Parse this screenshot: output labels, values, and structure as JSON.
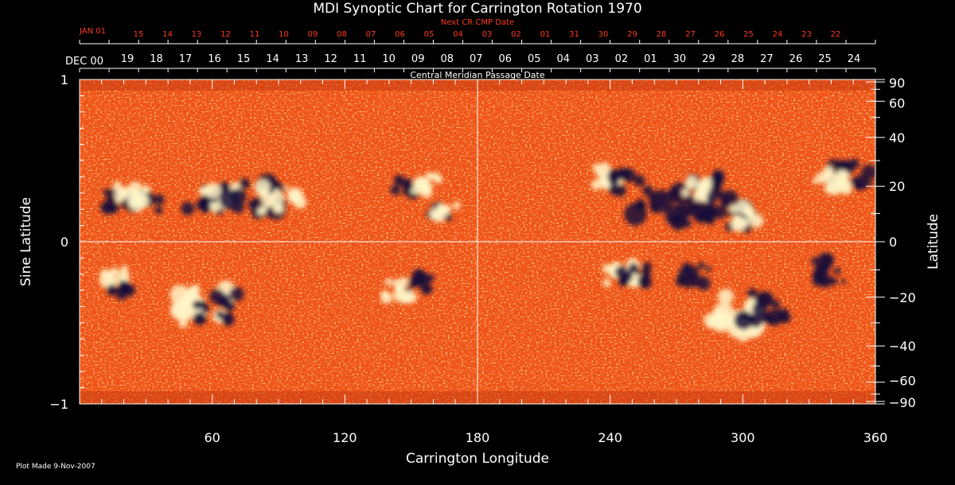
{
  "chart_data": {
    "type": "heatmap",
    "title": "MDI Synoptic Chart for Carrington Rotation 1970",
    "xlabel": "Carrington Longitude",
    "ylabel_left": "Sine Latitude",
    "ylabel_right": "Latitude",
    "top_axis_label": "Central Meridian Passage Date",
    "next_cr_label": "Next CR CMP Date",
    "footer": "Plot Made  9-Nov-2007",
    "xlim": [
      0,
      360
    ],
    "ylim": [
      -1,
      1
    ],
    "x_ticks": [
      {
        "value": 60,
        "label": "60"
      },
      {
        "value": 120,
        "label": "120"
      },
      {
        "value": 180,
        "label": "180"
      },
      {
        "value": 240,
        "label": "240"
      },
      {
        "value": 300,
        "label": "300"
      },
      {
        "value": 360,
        "label": "360"
      }
    ],
    "y_ticks_left": [
      {
        "value": 1,
        "label": "1"
      },
      {
        "value": 0,
        "label": "0"
      },
      {
        "value": -1,
        "label": "−1"
      }
    ],
    "y_ticks_right": [
      {
        "lat": 90,
        "label": "90"
      },
      {
        "lat": 60,
        "label": "60"
      },
      {
        "lat": 40,
        "label": "40"
      },
      {
        "lat": 20,
        "label": "20"
      },
      {
        "lat": 0,
        "label": "0"
      },
      {
        "lat": -20,
        "label": "−20"
      },
      {
        "lat": -40,
        "label": "−40"
      },
      {
        "lat": -60,
        "label": "−60"
      },
      {
        "lat": -90,
        "label": "−90"
      }
    ],
    "cmp_dates": {
      "start_label": "DEC 00",
      "labels": [
        "19",
        "18",
        "17",
        "16",
        "15",
        "14",
        "13",
        "12",
        "11",
        "10",
        "09",
        "08",
        "07",
        "06",
        "05",
        "04",
        "03",
        "02",
        "01",
        "30",
        "29",
        "28",
        "27",
        "26",
        "25",
        "24"
      ]
    },
    "next_cr_dates": {
      "start_label": "JAN 01",
      "labels": [
        "15",
        "14",
        "13",
        "12",
        "11",
        "10",
        "09",
        "08",
        "07",
        "06",
        "05",
        "04",
        "03",
        "02",
        "01",
        "31",
        "30",
        "29",
        "28",
        "27",
        "26",
        "25",
        "24",
        "23",
        "22"
      ]
    },
    "regions": [
      {
        "lon": 18,
        "sinlat": 0.25,
        "polarity": "negative",
        "size": 1.0
      },
      {
        "lon": 30,
        "sinlat": 0.24,
        "polarity": "negative",
        "size": 1.0
      },
      {
        "lon": 24,
        "sinlat": 0.28,
        "polarity": "positive",
        "size": 1.1
      },
      {
        "lon": 58,
        "sinlat": 0.27,
        "polarity": "negative",
        "size": 1.4
      },
      {
        "lon": 64,
        "sinlat": 0.26,
        "polarity": "positive",
        "size": 1.2
      },
      {
        "lon": 80,
        "sinlat": 0.26,
        "polarity": "negative",
        "size": 1.8
      },
      {
        "lon": 91,
        "sinlat": 0.26,
        "polarity": "positive",
        "size": 1.4
      },
      {
        "lon": 148,
        "sinlat": 0.34,
        "polarity": "negative",
        "size": 0.8
      },
      {
        "lon": 156,
        "sinlat": 0.36,
        "polarity": "positive",
        "size": 1.0
      },
      {
        "lon": 162,
        "sinlat": 0.18,
        "polarity": "negative",
        "size": 0.7
      },
      {
        "lon": 166,
        "sinlat": 0.18,
        "polarity": "positive",
        "size": 0.8
      },
      {
        "lon": 237,
        "sinlat": 0.4,
        "polarity": "positive",
        "size": 1.0
      },
      {
        "lon": 247,
        "sinlat": 0.37,
        "polarity": "negative",
        "size": 1.0
      },
      {
        "lon": 265,
        "sinlat": 0.22,
        "polarity": "negative",
        "size": 2.0
      },
      {
        "lon": 283,
        "sinlat": 0.35,
        "polarity": "negative",
        "size": 1.0
      },
      {
        "lon": 278,
        "sinlat": 0.32,
        "polarity": "positive",
        "size": 1.0
      },
      {
        "lon": 292,
        "sinlat": 0.18,
        "polarity": "negative",
        "size": 1.6
      },
      {
        "lon": 303,
        "sinlat": 0.16,
        "polarity": "positive",
        "size": 1.2
      },
      {
        "lon": 350,
        "sinlat": 0.4,
        "polarity": "negative",
        "size": 1.4
      },
      {
        "lon": 340,
        "sinlat": 0.37,
        "polarity": "positive",
        "size": 1.1
      },
      {
        "lon": 15,
        "sinlat": -0.22,
        "polarity": "positive",
        "size": 1.0
      },
      {
        "lon": 20,
        "sinlat": -0.3,
        "polarity": "negative",
        "size": 0.8
      },
      {
        "lon": 55,
        "sinlat": -0.4,
        "polarity": "positive",
        "size": 1.8
      },
      {
        "lon": 62,
        "sinlat": -0.4,
        "polarity": "negative",
        "size": 1.4
      },
      {
        "lon": 155,
        "sinlat": -0.25,
        "polarity": "negative",
        "size": 1.0
      },
      {
        "lon": 145,
        "sinlat": -0.3,
        "polarity": "positive",
        "size": 1.0
      },
      {
        "lon": 245,
        "sinlat": -0.2,
        "polarity": "positive",
        "size": 1.0
      },
      {
        "lon": 251,
        "sinlat": -0.2,
        "polarity": "negative",
        "size": 0.9
      },
      {
        "lon": 278,
        "sinlat": -0.2,
        "polarity": "negative",
        "size": 1.0
      },
      {
        "lon": 295,
        "sinlat": -0.45,
        "polarity": "positive",
        "size": 2.0
      },
      {
        "lon": 310,
        "sinlat": -0.4,
        "polarity": "negative",
        "size": 1.6
      },
      {
        "lon": 340,
        "sinlat": -0.18,
        "polarity": "negative",
        "size": 1.2
      }
    ],
    "grid": false,
    "colors": {
      "background": "#000000",
      "field_base": "#f05216",
      "positive": "#fff6c8",
      "negative": "#1a0f3a",
      "next_cr_text": "#ff3a1c",
      "axes": "#ffffff"
    }
  }
}
